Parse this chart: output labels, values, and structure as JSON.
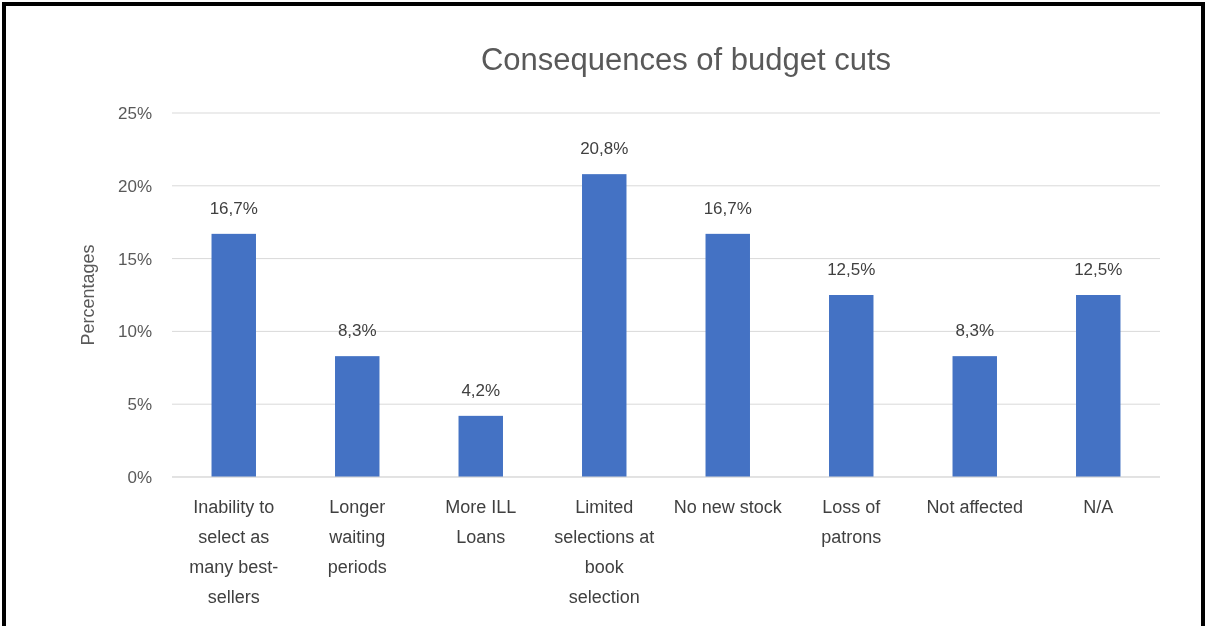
{
  "chart_data": {
    "type": "bar",
    "title": "Consequences of budget cuts",
    "ylabel": "Percentages",
    "categories": [
      "Inability to select as many best-sellers",
      "Longer waiting periods",
      "More ILL Loans",
      "Limited selections at book selection",
      "No new stock",
      "Loss of patrons",
      "Not affected",
      "N/A"
    ],
    "values": [
      16.7,
      8.3,
      4.2,
      20.8,
      16.7,
      12.5,
      8.3,
      12.5
    ],
    "value_labels": [
      "16,7%",
      "8,3%",
      "4,2%",
      "20,8%",
      "16,7%",
      "12,5%",
      "8,3%",
      "12,5%"
    ],
    "color": "#4472c4",
    "ylim": [
      0,
      25
    ],
    "yticks": [
      {
        "value": 0,
        "label": "0%"
      },
      {
        "value": 5,
        "label": "5%"
      },
      {
        "value": 10,
        "label": "10%"
      },
      {
        "value": 15,
        "label": "15%"
      },
      {
        "value": 20,
        "label": "20%"
      },
      {
        "value": 25,
        "label": "25%"
      }
    ],
    "grid": "y"
  }
}
